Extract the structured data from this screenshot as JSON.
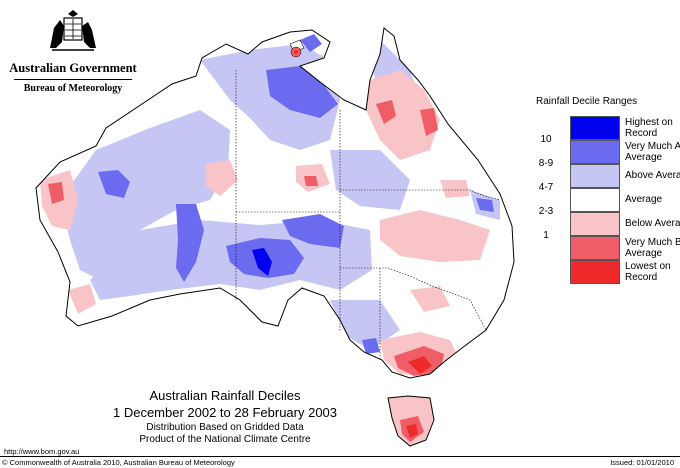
{
  "header": {
    "government": "Australian Government",
    "bureau": "Bureau of Meteorology"
  },
  "legend": {
    "title": "Rainfall Decile Ranges",
    "items": [
      {
        "range": "",
        "label": "Highest on Record",
        "color": "#0000f0"
      },
      {
        "range": "10",
        "label": "Very Much Above Average",
        "color": "#6b6bef"
      },
      {
        "range": "8-9",
        "label": "Above Average",
        "color": "#c6c6f4"
      },
      {
        "range": "4-7",
        "label": "Average",
        "color": "#ffffff"
      },
      {
        "range": "2-3",
        "label": "Below Average",
        "color": "#f8c4c8"
      },
      {
        "range": "1",
        "label": "Very Much Below Average",
        "color": "#ef5d66"
      },
      {
        "range": "",
        "label": "Lowest on Record",
        "color": "#ee2a2a"
      }
    ]
  },
  "map": {
    "title": "Australian Rainfall Deciles",
    "period": "1 December 2002 to 28 February 2003",
    "note1": "Distribution Based on Gridded Data",
    "note2": "Product of the National Climate Centre"
  },
  "footer": {
    "url": "http://www.bom.gov.au",
    "copyright": "© Commonwealth of Australia 2010, Australian Bureau of Meteorology",
    "issued": "Issued: 01/01/2010"
  }
}
